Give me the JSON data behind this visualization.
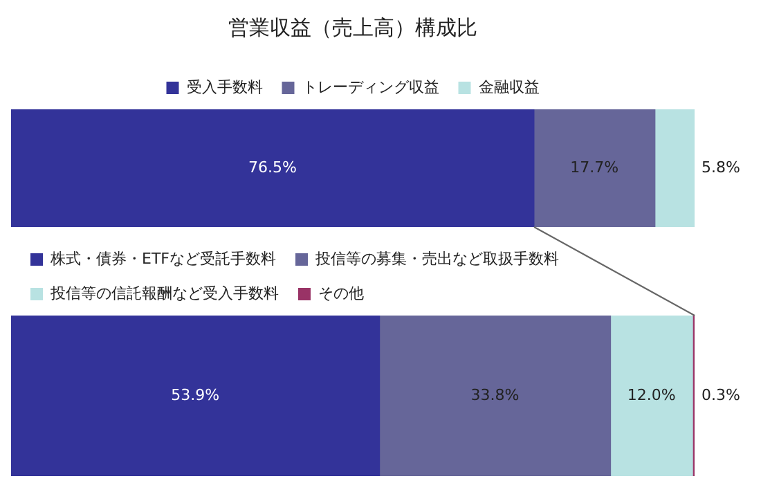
{
  "chart_data": [
    {
      "type": "bar",
      "orientation": "horizontal",
      "stacked": true,
      "title": "営業収益（売上高）構成比",
      "categories": [
        null
      ],
      "tick_labels": false,
      "legend": "top",
      "series": [
        {
          "name": "受入手数料",
          "color": "#333399",
          "values": [
            76.5
          ],
          "value_labels": [
            "76.5%"
          ]
        },
        {
          "name": "トレーディング収益",
          "color": "#666699",
          "values": [
            17.7
          ],
          "value_labels": [
            "17.7%"
          ]
        },
        {
          "name": "金融収益",
          "color": "#b8e2e2",
          "values": [
            5.8
          ],
          "value_labels": [
            "5.8%"
          ]
        }
      ]
    },
    {
      "type": "bar",
      "orientation": "horizontal",
      "stacked": true,
      "categories": [
        null
      ],
      "tick_labels": false,
      "legend": "top left",
      "series": [
        {
          "name": "株式・債券・ETFなど受託手数料",
          "color": "#333399",
          "values": [
            53.9
          ],
          "value_labels": [
            "53.9%"
          ]
        },
        {
          "name": "投信等の募集・売出など取扱手数料",
          "color": "#666699",
          "values": [
            33.8
          ],
          "value_labels": [
            "33.8%"
          ]
        },
        {
          "name": "投信等の信託報酬など受入手数料",
          "color": "#b8e2e2",
          "values": [
            12.0
          ],
          "value_labels": [
            "12.0%"
          ]
        },
        {
          "name": "その他",
          "color": "#993366",
          "values": [
            0.3
          ],
          "value_labels": [
            "0.3%"
          ]
        }
      ]
    }
  ]
}
